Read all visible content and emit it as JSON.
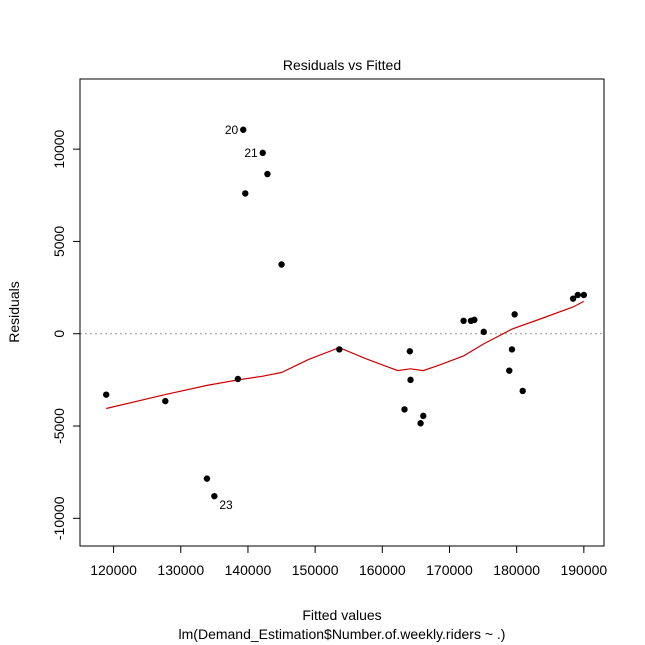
{
  "chart_data": {
    "type": "scatter",
    "title": "Residuals vs Fitted",
    "xlabel": "Fitted values",
    "subtitle": "lm(Demand_Estimation$Number.of.weekly.riders ~ .)",
    "ylabel": "Residuals",
    "xlim": [
      115000,
      193000
    ],
    "ylim": [
      -11500,
      13800
    ],
    "x_ticks": [
      120000,
      130000,
      140000,
      150000,
      160000,
      170000,
      180000,
      190000
    ],
    "x_tick_labels": [
      "120000",
      "130000",
      "140000",
      "150000",
      "160000",
      "170000",
      "180000",
      "190000"
    ],
    "y_ticks": [
      -10000,
      -5000,
      0,
      5000,
      10000
    ],
    "y_tick_labels": [
      "-10000",
      "-5000",
      "0",
      "5000",
      "10000"
    ],
    "reference_line": 0,
    "points": [
      {
        "x": 118900,
        "y": -3300,
        "label": ""
      },
      {
        "x": 127700,
        "y": -3650,
        "label": ""
      },
      {
        "x": 133900,
        "y": -7850,
        "label": ""
      },
      {
        "x": 135000,
        "y": -8800,
        "label": "23"
      },
      {
        "x": 138500,
        "y": -2450,
        "label": ""
      },
      {
        "x": 139300,
        "y": 11050,
        "label": "20"
      },
      {
        "x": 139600,
        "y": 7600,
        "label": ""
      },
      {
        "x": 142200,
        "y": 9800,
        "label": "21"
      },
      {
        "x": 142900,
        "y": 8650,
        "label": ""
      },
      {
        "x": 145000,
        "y": 3750,
        "label": ""
      },
      {
        "x": 153600,
        "y": -850,
        "label": ""
      },
      {
        "x": 163300,
        "y": -4100,
        "label": ""
      },
      {
        "x": 164100,
        "y": -950,
        "label": ""
      },
      {
        "x": 164200,
        "y": -2500,
        "label": ""
      },
      {
        "x": 165700,
        "y": -4850,
        "label": ""
      },
      {
        "x": 166100,
        "y": -4450,
        "label": ""
      },
      {
        "x": 172100,
        "y": 700,
        "label": ""
      },
      {
        "x": 173200,
        "y": 700,
        "label": ""
      },
      {
        "x": 173700,
        "y": 750,
        "label": ""
      },
      {
        "x": 175100,
        "y": 100,
        "label": ""
      },
      {
        "x": 178900,
        "y": -2000,
        "label": ""
      },
      {
        "x": 179300,
        "y": -850,
        "label": ""
      },
      {
        "x": 179700,
        "y": 1050,
        "label": ""
      },
      {
        "x": 180900,
        "y": -3100,
        "label": ""
      },
      {
        "x": 188400,
        "y": 1900,
        "label": ""
      },
      {
        "x": 189100,
        "y": 2100,
        "label": ""
      },
      {
        "x": 190000,
        "y": 2100,
        "label": ""
      }
    ],
    "smooth_line": [
      {
        "x": 118900,
        "y": -4050
      },
      {
        "x": 127700,
        "y": -3300
      },
      {
        "x": 133900,
        "y": -2800
      },
      {
        "x": 138500,
        "y": -2500
      },
      {
        "x": 142200,
        "y": -2300
      },
      {
        "x": 145000,
        "y": -2100
      },
      {
        "x": 149000,
        "y": -1400
      },
      {
        "x": 153600,
        "y": -750
      },
      {
        "x": 157500,
        "y": -1350
      },
      {
        "x": 162300,
        "y": -2000
      },
      {
        "x": 164200,
        "y": -1900
      },
      {
        "x": 166100,
        "y": -2000
      },
      {
        "x": 168500,
        "y": -1700
      },
      {
        "x": 172100,
        "y": -1200
      },
      {
        "x": 175100,
        "y": -550
      },
      {
        "x": 179300,
        "y": 250
      },
      {
        "x": 183500,
        "y": 800
      },
      {
        "x": 188400,
        "y": 1450
      },
      {
        "x": 190000,
        "y": 1750
      }
    ],
    "colors": {
      "points": "#000000",
      "smooth": "#cc0000",
      "reference": "#999999",
      "frame": "#000000"
    },
    "grid": false,
    "legend": "none"
  }
}
